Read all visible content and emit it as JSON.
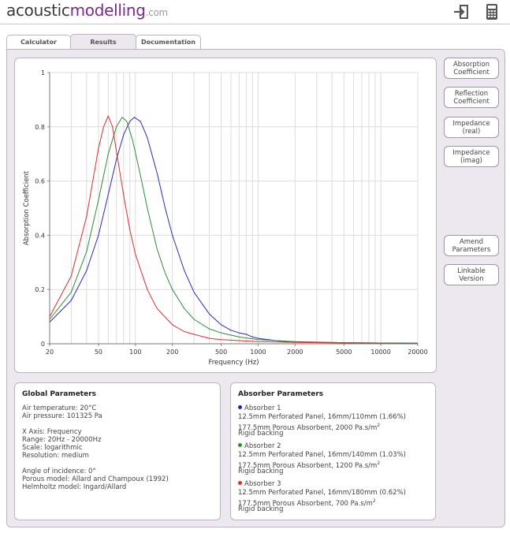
{
  "logo": {
    "part1": "acoustic",
    "part2": "modelling",
    "part3": ".com"
  },
  "header_icons": {
    "exit": "exit-icon",
    "calculator": "calculator-icon"
  },
  "tabs": [
    {
      "label": "Calculator",
      "active": false
    },
    {
      "label": "Results",
      "active": true
    },
    {
      "label": "Documentation",
      "active": false
    }
  ],
  "side_buttons": [
    {
      "line1": "Absorption",
      "line2": "Coefficient"
    },
    {
      "line1": "Reflection",
      "line2": "Coefficient"
    },
    {
      "line1": "Impedance",
      "line2": "(real)"
    },
    {
      "line1": "Impedance",
      "line2": "(imag)"
    },
    {
      "line1": "Amend",
      "line2": "Parameters"
    },
    {
      "line1": "Linkable",
      "line2": "Version"
    }
  ],
  "chart_data": {
    "type": "line",
    "xlabel": "Frequency (Hz)",
    "ylabel": "Absorption Coefficient",
    "xscale": "log",
    "xlim": [
      20,
      20000
    ],
    "ylim": [
      0,
      1
    ],
    "grid": true,
    "xticks": [
      "20",
      "50",
      "100",
      "200",
      "500",
      "1000",
      "2000",
      "5000",
      "10000",
      "20000"
    ],
    "yticks": [
      "0",
      "0.2",
      "0.4",
      "0.6",
      "0.8",
      "1"
    ],
    "series": [
      {
        "color": "#2b2bb5",
        "x": [
          20,
          30,
          40,
          50,
          60,
          70,
          80,
          90,
          98,
          110,
          125,
          150,
          175,
          200,
          250,
          300,
          400,
          500,
          600,
          700,
          800,
          900,
          1000,
          1500,
          2000,
          5000,
          10000,
          20000
        ],
        "y": [
          0.08,
          0.16,
          0.27,
          0.4,
          0.55,
          0.68,
          0.77,
          0.82,
          0.835,
          0.82,
          0.76,
          0.63,
          0.5,
          0.4,
          0.27,
          0.19,
          0.11,
          0.07,
          0.05,
          0.04,
          0.035,
          0.025,
          0.02,
          0.01,
          0.007,
          0.004,
          0.003,
          0.002
        ]
      },
      {
        "color": "#2e8b3a",
        "x": [
          20,
          30,
          40,
          50,
          60,
          70,
          78,
          85,
          95,
          110,
          125,
          150,
          175,
          200,
          250,
          300,
          400,
          500,
          700,
          1000,
          2000,
          5000,
          10000,
          20000
        ],
        "y": [
          0.09,
          0.19,
          0.34,
          0.53,
          0.7,
          0.8,
          0.835,
          0.82,
          0.75,
          0.62,
          0.5,
          0.35,
          0.26,
          0.2,
          0.13,
          0.09,
          0.055,
          0.04,
          0.025,
          0.015,
          0.008,
          0.004,
          0.003,
          0.002
        ]
      },
      {
        "color": "#d9302a",
        "x": [
          20,
          30,
          40,
          50,
          55,
          60,
          65,
          70,
          80,
          90,
          100,
          125,
          150,
          200,
          250,
          300,
          400,
          500,
          1000,
          2000,
          5000,
          10000,
          20000
        ],
        "y": [
          0.1,
          0.25,
          0.47,
          0.72,
          0.8,
          0.84,
          0.8,
          0.71,
          0.55,
          0.42,
          0.33,
          0.2,
          0.13,
          0.07,
          0.045,
          0.035,
          0.02,
          0.015,
          0.008,
          0.005,
          0.003,
          0.002,
          0.001
        ]
      }
    ]
  },
  "global_params": {
    "title": "Global Parameters",
    "lines": [
      "Air temperature: 20°C",
      "Air pressure: 101325 Pa",
      "",
      "X Axis: Frequency",
      "Range: 20Hz - 20000Hz",
      "Scale: logarithmic",
      "Resolution: medium",
      "",
      "Angle of incidence: 0°",
      "Porous model: Allard and Champoux (1992)",
      "Helmholtz model: Ingard/Allard"
    ]
  },
  "absorber_params": {
    "title": "Absorber Parameters",
    "absorbers": [
      {
        "name": "Absorber 1",
        "color": "#2222aa",
        "line1": "12.5mm Perforated Panel, 16mm/110mm (1.66%)",
        "line2": "177.5mm Porous Absorbent, 2000 Pa.s/m",
        "sup": "2",
        "line3": "Rigid backing"
      },
      {
        "name": "Absorber 2",
        "color": "#2e8b3a",
        "line1": "12.5mm Perforated Panel, 16mm/140mm (1.03%)",
        "line2": "177.5mm Porous Absorbent, 1200 Pa.s/m",
        "sup": "2",
        "line3": "Rigid backing"
      },
      {
        "name": "Absorber 3",
        "color": "#d9302a",
        "line1": "12.5mm Perforated Panel, 16mm/180mm (0.62%)",
        "line2": "177.5mm Porous Absorbent, 700 Pa.s/m",
        "sup": "2",
        "line3": "Rigid backing"
      }
    ]
  }
}
